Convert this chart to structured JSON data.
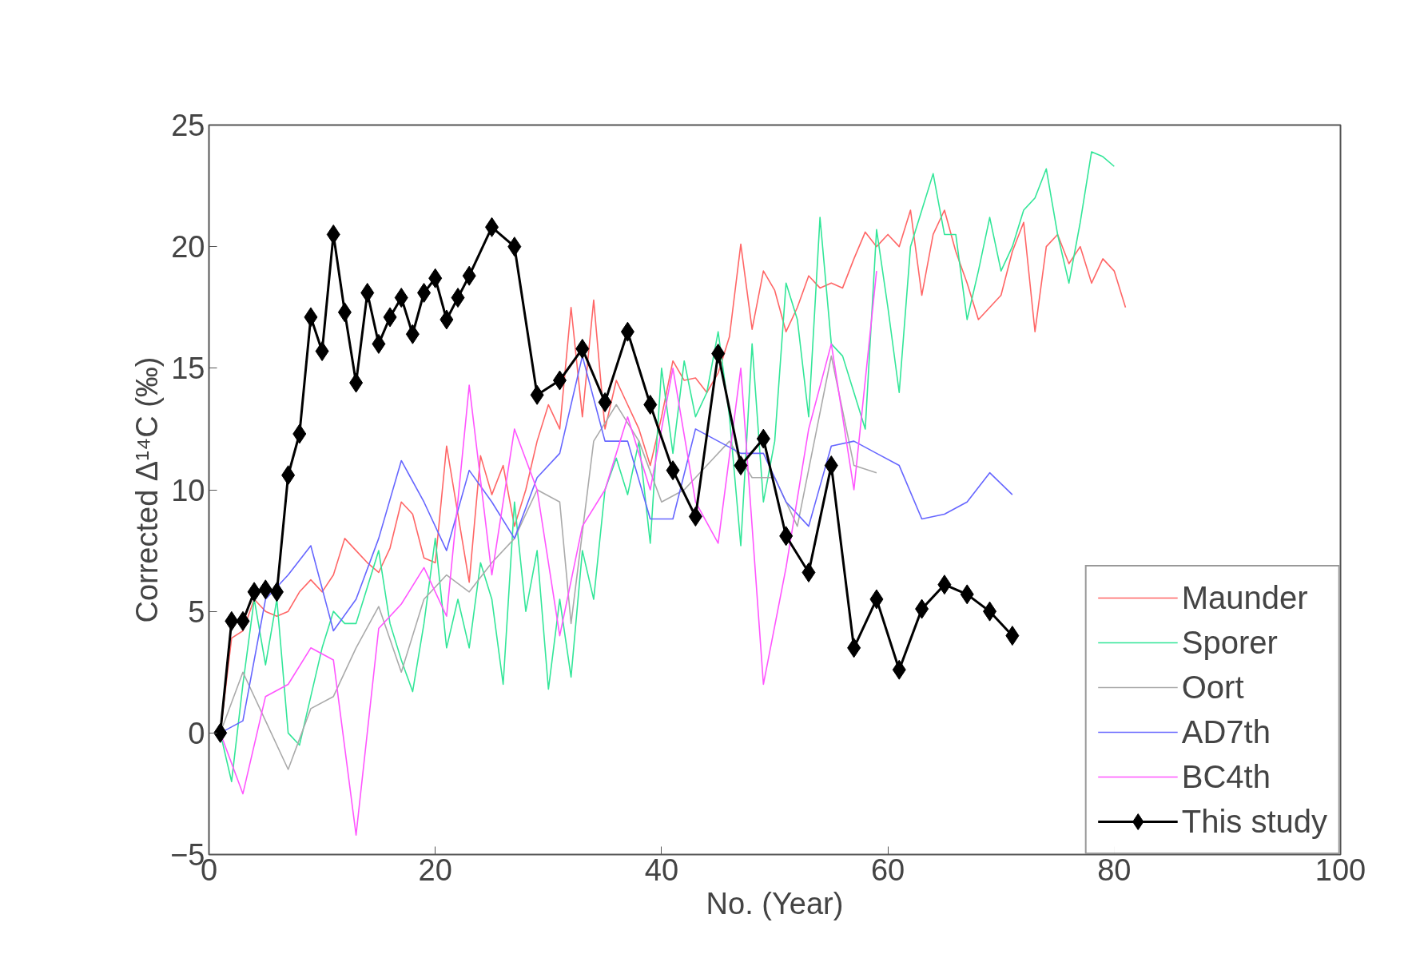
{
  "chart_data": {
    "type": "line",
    "xlabel": "No. (Year)",
    "ylabel": "Corrected Δ¹⁴C (‰)",
    "xlim": [
      0,
      100
    ],
    "xticks": [
      0,
      20,
      40,
      60,
      80,
      100
    ],
    "ylim": [
      -5,
      25
    ],
    "yticks": [
      -5,
      0,
      5,
      10,
      15,
      20,
      25
    ],
    "grid": false,
    "legend": "bottom right",
    "series": [
      {
        "name": "Maunder",
        "color": "#ff6666",
        "marker": "none",
        "x": [
          1,
          2,
          3,
          4,
          5,
          6,
          7,
          8,
          9,
          10,
          11,
          12,
          13,
          14,
          15,
          16,
          17,
          18,
          19,
          20,
          21,
          22,
          23,
          24,
          25,
          26,
          27,
          28,
          29,
          30,
          31,
          32,
          33,
          34,
          35,
          36,
          37,
          38,
          39,
          40,
          41,
          42,
          43,
          44,
          45,
          46,
          47,
          48,
          49,
          50,
          51,
          52,
          53,
          54,
          55,
          56,
          57,
          58,
          59,
          60,
          61,
          62,
          63,
          64,
          65,
          66,
          67,
          68,
          69,
          70,
          71,
          72,
          73,
          74,
          75,
          76,
          77,
          78,
          79,
          80,
          81
        ],
        "values": [
          0,
          3.9,
          4.2,
          5.5,
          5.0,
          4.8,
          5.0,
          5.8,
          6.3,
          5.8,
          6.5,
          8.0,
          7.5,
          7.0,
          6.6,
          7.6,
          9.5,
          9.0,
          7.2,
          7.0,
          11.8,
          9.0,
          6.2,
          11.4,
          9.8,
          11.0,
          8.5,
          10.0,
          12.0,
          13.5,
          12.5,
          17.5,
          13.0,
          17.8,
          12.5,
          14.5,
          13.5,
          12.5,
          11.0,
          13.0,
          15.3,
          14.5,
          14.6,
          14.0,
          14.8,
          16.3,
          20.1,
          16.6,
          19.0,
          18.2,
          16.5,
          17.5,
          18.8,
          18.3,
          18.5,
          18.3,
          19.5,
          20.6,
          20.0,
          20.5,
          20.0,
          21.5,
          18.0,
          20.5,
          21.5,
          19.8,
          18.5,
          17.0,
          17.5,
          18.0,
          19.8,
          21.0,
          16.5,
          20.0,
          20.5,
          19.3,
          20.0,
          18.5,
          19.5,
          19.0,
          17.5
        ]
      },
      {
        "name": "Sporer",
        "color": "#33e699",
        "marker": "none",
        "x": [
          1,
          2,
          3,
          4,
          5,
          6,
          7,
          8,
          9,
          10,
          11,
          12,
          13,
          14,
          15,
          16,
          17,
          18,
          19,
          20,
          21,
          22,
          23,
          24,
          25,
          26,
          27,
          28,
          29,
          30,
          31,
          32,
          33,
          34,
          35,
          36,
          37,
          38,
          39,
          40,
          41,
          42,
          43,
          44,
          45,
          46,
          47,
          48,
          49,
          50,
          51,
          52,
          53,
          54,
          55,
          56,
          57,
          58,
          59,
          60,
          61,
          62,
          63,
          64,
          65,
          66,
          67,
          68,
          69,
          70,
          71,
          72,
          73,
          74,
          75,
          76,
          77,
          78,
          79,
          80
        ],
        "values": [
          0,
          -2,
          2,
          5.5,
          2.8,
          5.5,
          0,
          -0.5,
          1.5,
          3.5,
          5,
          4.5,
          4.5,
          6,
          7.5,
          4.5,
          3,
          1.7,
          4.5,
          8,
          3.5,
          5.5,
          3.5,
          7,
          5.5,
          2,
          9.5,
          5,
          7.5,
          1.8,
          5.5,
          2.3,
          7.5,
          5.5,
          10,
          11.3,
          9.8,
          12,
          7.8,
          15,
          11.5,
          15.3,
          13,
          14,
          16.5,
          13,
          7.7,
          16,
          9.5,
          12,
          18.5,
          17,
          13,
          21.2,
          16,
          15.5,
          14,
          12.5,
          20.7,
          17.5,
          14,
          20,
          21.5,
          23,
          20.5,
          20.5,
          17,
          19,
          21.2,
          19,
          20,
          21.5,
          22,
          23.2,
          20.5,
          18.5,
          21,
          23.9,
          23.7,
          23.3
        ]
      },
      {
        "name": "Oort",
        "color": "#aaaaaa",
        "marker": "none",
        "x": [
          1,
          3,
          5,
          7,
          9,
          11,
          13,
          15,
          17,
          19,
          21,
          23,
          25,
          27,
          29,
          31,
          32,
          34,
          36,
          38,
          40,
          42,
          44,
          46,
          48,
          50,
          52,
          55,
          57,
          59
        ],
        "values": [
          0,
          2.5,
          0.5,
          -1.5,
          1,
          1.5,
          3.5,
          5.2,
          2.5,
          5.5,
          6.5,
          5.8,
          7,
          8,
          10,
          9.5,
          4.5,
          12,
          13.5,
          12,
          9.5,
          10,
          11,
          12,
          10.5,
          10.5,
          8.5,
          15.5,
          11,
          10.7
        ]
      },
      {
        "name": "AD7th",
        "color": "#6666ff",
        "marker": "none",
        "x": [
          1,
          3,
          5,
          7,
          9,
          11,
          13,
          15,
          17,
          19,
          21,
          23,
          25,
          27,
          29,
          31,
          33,
          35,
          37,
          39,
          41,
          43,
          45,
          47,
          49,
          51,
          53,
          55,
          57,
          59,
          61,
          63,
          65,
          67,
          69,
          71
        ],
        "values": [
          0,
          0.5,
          5.5,
          6.5,
          7.7,
          4.2,
          5.5,
          8,
          11.2,
          9.5,
          7.5,
          10.8,
          9.5,
          8,
          10.5,
          11.5,
          15.5,
          12,
          12,
          8.8,
          8.8,
          12.5,
          12,
          11.5,
          11.5,
          9.5,
          8.5,
          11.8,
          12,
          11.5,
          11,
          8.8,
          9,
          9.5,
          10.7,
          9.8
        ]
      },
      {
        "name": "BC4th",
        "color": "#ff55ff",
        "marker": "none",
        "x": [
          1,
          3,
          5,
          7,
          9,
          11,
          13,
          15,
          17,
          19,
          21,
          23,
          25,
          27,
          29,
          31,
          33,
          35,
          37,
          39,
          41,
          43,
          45,
          47,
          49,
          51,
          53,
          55,
          57,
          59
        ],
        "values": [
          0,
          -2.5,
          1.5,
          2,
          3.5,
          3,
          -4.2,
          4.3,
          5.3,
          6.8,
          4.8,
          14.3,
          6.5,
          12.5,
          10,
          4,
          8.5,
          10,
          13,
          10,
          15,
          9.5,
          7.8,
          15,
          2,
          6.8,
          12.5,
          16,
          10,
          19
        ]
      },
      {
        "name": "This study",
        "color": "#000000",
        "marker": "diamond",
        "x": [
          1,
          2,
          3,
          4,
          5,
          6,
          7,
          8,
          9,
          10,
          11,
          12,
          13,
          14,
          15,
          16,
          17,
          18,
          19,
          20,
          21,
          22,
          23,
          25,
          27,
          29,
          31,
          33,
          35,
          37,
          39,
          41,
          43,
          45,
          47,
          49,
          51,
          53,
          55,
          57,
          59,
          61,
          63,
          65,
          67,
          69,
          71
        ],
        "values": [
          0,
          4.6,
          4.6,
          5.8,
          5.9,
          5.8,
          10.6,
          12.3,
          17.1,
          15.7,
          20.5,
          17.3,
          14.4,
          18.1,
          16.0,
          17.1,
          17.9,
          16.4,
          18.1,
          18.7,
          17.0,
          17.9,
          18.8,
          20.8,
          20.0,
          13.9,
          14.5,
          15.8,
          13.6,
          16.5,
          13.5,
          10.8,
          8.9,
          15.6,
          11.0,
          12.1,
          8.1,
          6.6,
          11.0,
          3.5,
          5.5,
          2.6,
          5.1,
          6.1,
          5.7,
          5.0,
          4.0
        ]
      }
    ]
  }
}
